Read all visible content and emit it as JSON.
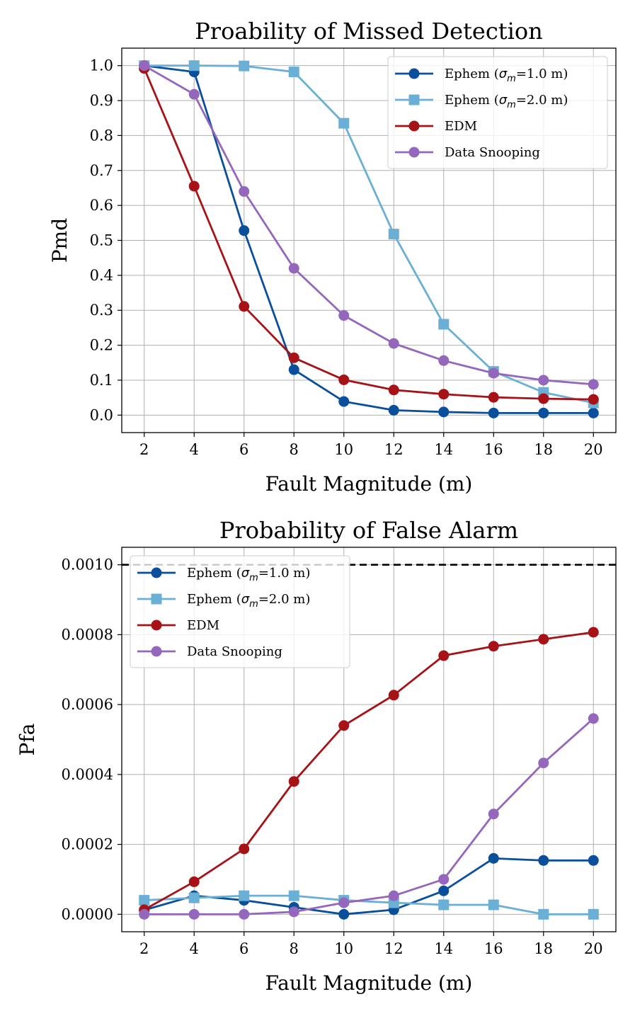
{
  "colors": {
    "ephem_1": "#0a4f9c",
    "ephem_2": "#6aafd6",
    "edm": "#a71217",
    "snooping": "#9467bd",
    "threshold": "#000000"
  },
  "chart_data": [
    {
      "type": "line",
      "title": "Proability of Missed Detection",
      "xlabel": "Fault Magnitude (m)",
      "ylabel": "Pmd",
      "x": [
        2,
        4,
        6,
        8,
        10,
        12,
        14,
        16,
        18,
        20
      ],
      "xlim": [
        1.1,
        20.9
      ],
      "ylim": [
        -0.05,
        1.05
      ],
      "xticks": [
        2,
        4,
        6,
        8,
        10,
        12,
        14,
        16,
        18,
        20
      ],
      "yticks": [
        0.0,
        0.1,
        0.2,
        0.3,
        0.4,
        0.5,
        0.6,
        0.7,
        0.8,
        0.9,
        1.0
      ],
      "ytick_labels": [
        "0.0",
        "0.1",
        "0.2",
        "0.3",
        "0.4",
        "0.5",
        "0.6",
        "0.7",
        "0.8",
        "0.9",
        "1.0"
      ],
      "grid": true,
      "legend_position": "top-right",
      "series": [
        {
          "name": "Ephem (σm=1.0 m)",
          "legend_base": "Ephem (",
          "legend_sym": "σ",
          "legend_sub": "m",
          "legend_rest": "=1.0 m)",
          "color_key": "ephem_1",
          "marker": "circle",
          "values": [
            1.0,
            0.982,
            0.528,
            0.13,
            0.039,
            0.014,
            0.009,
            0.006,
            0.006,
            0.006
          ]
        },
        {
          "name": "Ephem (σm=2.0 m)",
          "legend_base": "Ephem (",
          "legend_sym": "σ",
          "legend_sub": "m",
          "legend_rest": "=2.0 m)",
          "color_key": "ephem_2",
          "marker": "square",
          "values": [
            1.0,
            1.0,
            0.999,
            0.982,
            0.835,
            0.518,
            0.26,
            0.125,
            0.065,
            0.035
          ]
        },
        {
          "name": "EDM",
          "legend_base": "EDM",
          "color_key": "edm",
          "marker": "circle",
          "values": [
            0.992,
            0.655,
            0.311,
            0.164,
            0.101,
            0.072,
            0.06,
            0.051,
            0.047,
            0.045
          ]
        },
        {
          "name": "Data Snooping",
          "legend_base": "Data Snooping",
          "color_key": "snooping",
          "marker": "circle",
          "values": [
            1.0,
            0.918,
            0.64,
            0.42,
            0.285,
            0.205,
            0.156,
            0.12,
            0.1,
            0.088
          ]
        }
      ]
    },
    {
      "type": "line",
      "title": "Probability of False Alarm",
      "xlabel": "Fault Magnitude (m)",
      "ylabel": "Pfa",
      "x": [
        2,
        4,
        6,
        8,
        10,
        12,
        14,
        16,
        18,
        20
      ],
      "xlim": [
        1.1,
        20.9
      ],
      "ylim": [
        -5e-05,
        0.00105
      ],
      "xticks": [
        2,
        4,
        6,
        8,
        10,
        12,
        14,
        16,
        18,
        20
      ],
      "yticks": [
        0.0,
        0.0002,
        0.0004,
        0.0006,
        0.0008,
        0.001
      ],
      "ytick_labels": [
        "0.0000",
        "0.0002",
        "0.0004",
        "0.0006",
        "0.0008",
        "0.0010"
      ],
      "grid": true,
      "legend_position": "top-left",
      "threshold": 0.001,
      "series": [
        {
          "name": "Ephem (σm=1.0 m)",
          "legend_base": "Ephem (",
          "legend_sym": "σ",
          "legend_sub": "m",
          "legend_rest": "=1.0 m)",
          "color_key": "ephem_1",
          "marker": "circle",
          "values": [
            1.2e-05,
            5.3e-05,
            4e-05,
            2e-05,
            0.0,
            1.3e-05,
            6.7e-05,
            0.00016,
            0.000154,
            0.000154
          ]
        },
        {
          "name": "Ephem (σm=2.0 m)",
          "legend_base": "Ephem (",
          "legend_sym": "σ",
          "legend_sub": "m",
          "legend_rest": "=2.0 m)",
          "color_key": "ephem_2",
          "marker": "square",
          "values": [
            4e-05,
            4.7e-05,
            5.3e-05,
            5.3e-05,
            4e-05,
            3.3e-05,
            2.7e-05,
            2.7e-05,
            0.0,
            0.0
          ]
        },
        {
          "name": "EDM",
          "legend_base": "EDM",
          "color_key": "edm",
          "marker": "circle",
          "values": [
            1.3e-05,
            9.3e-05,
            0.000187,
            0.00038,
            0.00054,
            0.000627,
            0.00074,
            0.000767,
            0.000787,
            0.000807
          ]
        },
        {
          "name": "Data Snooping",
          "legend_base": "Data Snooping",
          "color_key": "snooping",
          "marker": "circle",
          "values": [
            0.0,
            0.0,
            0.0,
            7e-06,
            3.3e-05,
            5.3e-05,
            0.0001,
            0.000287,
            0.000433,
            0.00056
          ]
        }
      ]
    }
  ]
}
